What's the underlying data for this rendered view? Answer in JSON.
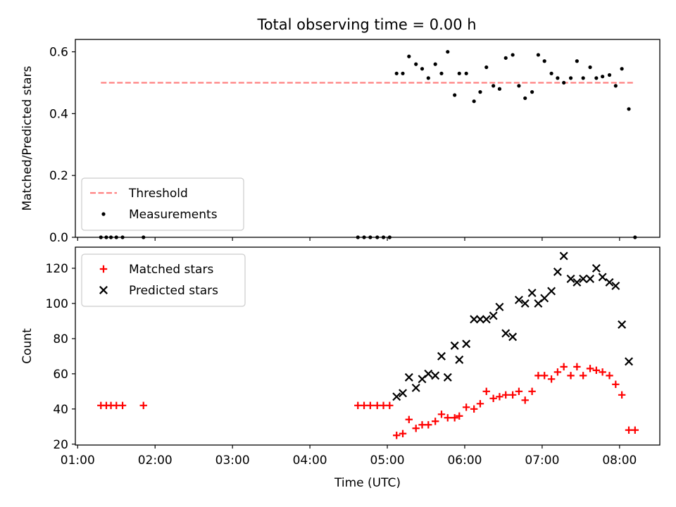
{
  "title": "Total observing time = 0.00 h",
  "chart_data": [
    {
      "type": "scatter",
      "ylabel": "Matched/Predicted stars",
      "ylim": [
        0,
        0.64
      ],
      "yticks": [
        0,
        0.2,
        0.4,
        0.6
      ],
      "ytick_labels": [
        "0.0",
        "0.2",
        "0.4",
        "0.6"
      ],
      "xlim": [
        0.97,
        8.52
      ],
      "xticks": [
        1,
        2,
        3,
        4,
        5,
        6,
        7,
        8
      ],
      "legend_position": "lower-left",
      "threshold": {
        "name": "Threshold",
        "value": 0.5,
        "x_range": [
          1.3,
          8.2
        ],
        "color": "#ff8080",
        "style": "dashed"
      },
      "series": [
        {
          "name": "Measurements",
          "marker": "dot",
          "color": "#000000",
          "x": [
            1.3,
            1.37,
            1.43,
            1.5,
            1.58,
            1.85,
            4.62,
            4.7,
            4.78,
            4.87,
            4.95,
            5.03,
            5.12,
            5.2,
            5.28,
            5.37,
            5.45,
            5.53,
            5.62,
            5.7,
            5.78,
            5.87,
            5.93,
            6.02,
            6.12,
            6.2,
            6.28,
            6.37,
            6.45,
            6.53,
            6.62,
            6.7,
            6.78,
            6.87,
            6.95,
            7.03,
            7.12,
            7.2,
            7.28,
            7.37,
            7.45,
            7.53,
            7.62,
            7.7,
            7.78,
            7.87,
            7.95,
            8.03,
            8.12,
            8.2
          ],
          "y": [
            0,
            0,
            0,
            0,
            0,
            0,
            0,
            0,
            0,
            0,
            0,
            0,
            0.53,
            0.53,
            0.585,
            0.56,
            0.545,
            0.515,
            0.56,
            0.53,
            0.6,
            0.46,
            0.53,
            0.53,
            0.44,
            0.47,
            0.55,
            0.49,
            0.48,
            0.58,
            0.59,
            0.49,
            0.45,
            0.47,
            0.59,
            0.57,
            0.53,
            0.515,
            0.5,
            0.515,
            0.57,
            0.515,
            0.55,
            0.515,
            0.52,
            0.525,
            0.49,
            0.545,
            0.415,
            0
          ]
        }
      ]
    },
    {
      "type": "scatter",
      "ylabel": "Count",
      "xlabel": "Time (UTC)",
      "ylim": [
        19.5,
        132
      ],
      "yticks": [
        20,
        40,
        60,
        80,
        100,
        120
      ],
      "xlim": [
        0.97,
        8.52
      ],
      "xticks": [
        1,
        2,
        3,
        4,
        5,
        6,
        7,
        8
      ],
      "xtick_labels": [
        "01:00",
        "02:00",
        "03:00",
        "04:00",
        "05:00",
        "06:00",
        "07:00",
        "08:00"
      ],
      "legend_position": "upper-left",
      "series": [
        {
          "name": "Matched stars",
          "marker": "plus",
          "color": "#ff0000",
          "x": [
            1.3,
            1.37,
            1.43,
            1.5,
            1.58,
            1.85,
            4.62,
            4.7,
            4.78,
            4.87,
            4.95,
            5.03,
            5.12,
            5.2,
            5.28,
            5.37,
            5.45,
            5.53,
            5.62,
            5.7,
            5.78,
            5.87,
            5.93,
            6.02,
            6.12,
            6.2,
            6.28,
            6.37,
            6.45,
            6.53,
            6.62,
            6.7,
            6.78,
            6.87,
            6.95,
            7.03,
            7.12,
            7.2,
            7.28,
            7.37,
            7.45,
            7.53,
            7.62,
            7.7,
            7.78,
            7.87,
            7.95,
            8.03,
            8.12,
            8.2
          ],
          "y": [
            42,
            42,
            42,
            42,
            42,
            42,
            42,
            42,
            42,
            42,
            42,
            42,
            25,
            26,
            34,
            29,
            31,
            31,
            33,
            37,
            35,
            35,
            36,
            41,
            40,
            43,
            50,
            46,
            47,
            48,
            48,
            50,
            45,
            50,
            59,
            59,
            57,
            61,
            64,
            59,
            64,
            59,
            63,
            62,
            61,
            59,
            54,
            48,
            28,
            28
          ]
        },
        {
          "name": "Predicted stars",
          "marker": "x",
          "color": "#000000",
          "x": [
            5.12,
            5.2,
            5.28,
            5.37,
            5.45,
            5.53,
            5.62,
            5.7,
            5.78,
            5.87,
            5.93,
            6.02,
            6.12,
            6.2,
            6.28,
            6.37,
            6.45,
            6.53,
            6.62,
            6.7,
            6.78,
            6.87,
            6.95,
            7.03,
            7.12,
            7.2,
            7.28,
            7.37,
            7.45,
            7.53,
            7.62,
            7.7,
            7.78,
            7.87,
            7.95,
            8.03,
            8.12
          ],
          "y": [
            47,
            49,
            58,
            52,
            57,
            60,
            59,
            70,
            58,
            76,
            68,
            77,
            91,
            91,
            91,
            93,
            98,
            83,
            81,
            102,
            100,
            106,
            100,
            103,
            107,
            118,
            127,
            114,
            112,
            114,
            114,
            120,
            115,
            112,
            110,
            88,
            67
          ]
        }
      ]
    }
  ]
}
